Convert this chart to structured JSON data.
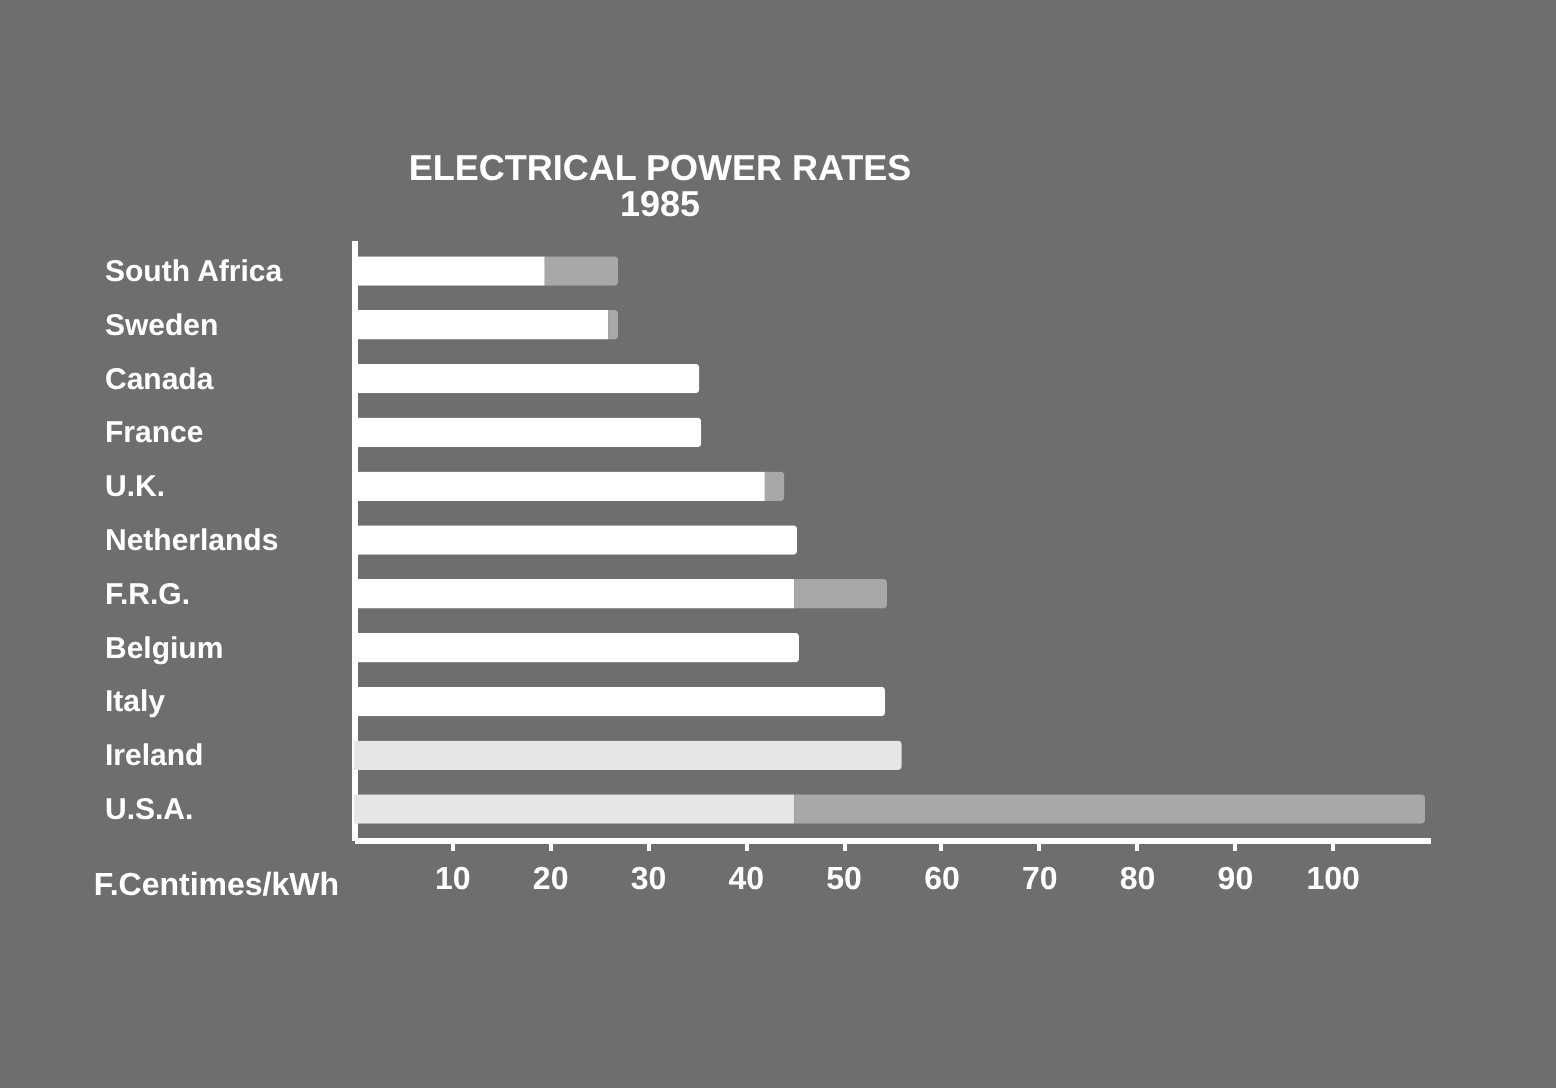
{
  "chart_data": {
    "type": "bar",
    "orientation": "horizontal",
    "stacked": true,
    "title": "ELECTRICAL POWER RATES",
    "subtitle": "1985",
    "xlabel": "F.Centimes/kWh",
    "categories": [
      "South Africa",
      "Sweden",
      "Canada",
      "France",
      "U.K.",
      "Netherlands",
      "F.R.G.",
      "Belgium",
      "Italy",
      "Ireland",
      "U.S.A."
    ],
    "series": [
      {
        "colors": [
          "#ffffff",
          "#ffffff",
          "#ffffff",
          "#ffffff",
          "#ffffff",
          "#ffffff",
          "#ffffff",
          "#ffffff",
          "#ffffff",
          "#e6e6e6",
          "#e6e6e6"
        ],
        "values": [
          19.5,
          26,
          35.3,
          35.5,
          42,
          45.3,
          45,
          45.5,
          54.3,
          56,
          45
        ]
      },
      {
        "color": "#a8a8a8",
        "values": [
          7.5,
          1,
          null,
          null,
          2,
          null,
          9.5,
          null,
          null,
          null,
          64.5
        ]
      }
    ],
    "xlim": [
      0,
      110
    ],
    "xticks": [
      10,
      20,
      30,
      40,
      50,
      60,
      70,
      80,
      90,
      100
    ],
    "grid": false
  }
}
